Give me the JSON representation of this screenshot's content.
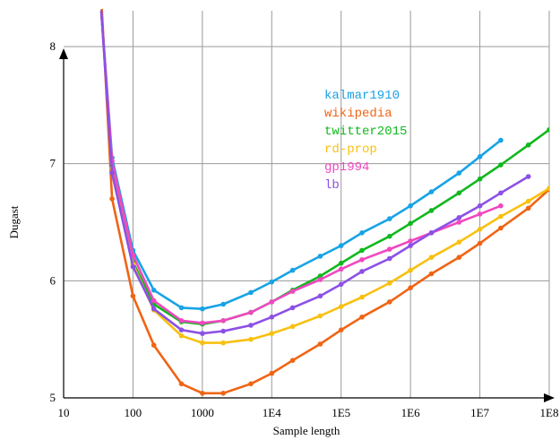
{
  "chart_data": {
    "type": "line",
    "title": "",
    "xlabel": "Sample length",
    "ylabel": "Dugast",
    "x_scale": "log",
    "xlim": [
      10,
      100000000
    ],
    "ylim": [
      5,
      8
    ],
    "grid": true,
    "legend_placement": "upper-middle-right",
    "x_ticks": [
      {
        "value": 10,
        "label": "10"
      },
      {
        "value": 100,
        "label": "100"
      },
      {
        "value": 1000,
        "label": "1000"
      },
      {
        "value": 10000,
        "label": "1E4"
      },
      {
        "value": 100000,
        "label": "1E5"
      },
      {
        "value": 1000000,
        "label": "1E6"
      },
      {
        "value": 10000000,
        "label": "1E7"
      },
      {
        "value": 100000000,
        "label": "1E8"
      }
    ],
    "y_ticks": [
      {
        "value": 5,
        "label": "5"
      },
      {
        "value": 6,
        "label": "6"
      },
      {
        "value": 7,
        "label": "7"
      },
      {
        "value": 8,
        "label": "8"
      }
    ],
    "series": [
      {
        "name": "kalmar1910",
        "color": "#17a3e6",
        "points": [
          [
            35,
            8.3
          ],
          [
            50,
            7.05
          ],
          [
            100,
            6.26
          ],
          [
            200,
            5.92
          ],
          [
            500,
            5.77
          ],
          [
            1000,
            5.76
          ],
          [
            2000,
            5.8
          ],
          [
            5000,
            5.9
          ],
          [
            10000,
            5.99
          ],
          [
            20000,
            6.09
          ],
          [
            50000,
            6.21
          ],
          [
            100000,
            6.3
          ],
          [
            200000,
            6.41
          ],
          [
            500000,
            6.53
          ],
          [
            1000000,
            6.64
          ],
          [
            2000000,
            6.76
          ],
          [
            5000000,
            6.92
          ],
          [
            10000000,
            7.06
          ],
          [
            20000000,
            7.2
          ]
        ]
      },
      {
        "name": "wikipedia",
        "color": "#f06414",
        "points": [
          [
            35,
            8.4
          ],
          [
            50,
            6.7
          ],
          [
            100,
            5.87
          ],
          [
            200,
            5.45
          ],
          [
            500,
            5.12
          ],
          [
            1000,
            5.04
          ],
          [
            2000,
            5.04
          ],
          [
            5000,
            5.12
          ],
          [
            10000,
            5.21
          ],
          [
            20000,
            5.32
          ],
          [
            50000,
            5.46
          ],
          [
            100000,
            5.58
          ],
          [
            200000,
            5.69
          ],
          [
            500000,
            5.82
          ],
          [
            1000000,
            5.94
          ],
          [
            2000000,
            6.06
          ],
          [
            5000000,
            6.2
          ],
          [
            10000000,
            6.32
          ],
          [
            20000000,
            6.45
          ],
          [
            50000000,
            6.62
          ],
          [
            100000000,
            6.78
          ]
        ]
      },
      {
        "name": "twitter2015",
        "color": "#10b81e",
        "points": [
          [
            35,
            8.3
          ],
          [
            50,
            6.98
          ],
          [
            100,
            6.16
          ],
          [
            200,
            5.8
          ],
          [
            500,
            5.65
          ],
          [
            1000,
            5.63
          ],
          [
            2000,
            5.66
          ],
          [
            5000,
            5.73
          ],
          [
            10000,
            5.82
          ],
          [
            20000,
            5.92
          ],
          [
            50000,
            6.04
          ],
          [
            100000,
            6.15
          ],
          [
            200000,
            6.26
          ],
          [
            500000,
            6.38
          ],
          [
            1000000,
            6.49
          ],
          [
            2000000,
            6.6
          ],
          [
            5000000,
            6.75
          ],
          [
            10000000,
            6.87
          ],
          [
            20000000,
            6.99
          ],
          [
            50000000,
            7.16
          ],
          [
            100000000,
            7.29
          ]
        ]
      },
      {
        "name": "rd-prop",
        "color": "#f8c010",
        "points": [
          [
            35,
            8.3
          ],
          [
            50,
            6.96
          ],
          [
            100,
            6.14
          ],
          [
            200,
            5.75
          ],
          [
            500,
            5.53
          ],
          [
            1000,
            5.47
          ],
          [
            2000,
            5.47
          ],
          [
            5000,
            5.5
          ],
          [
            10000,
            5.55
          ],
          [
            20000,
            5.61
          ],
          [
            50000,
            5.7
          ],
          [
            100000,
            5.78
          ],
          [
            200000,
            5.86
          ],
          [
            500000,
            5.98
          ],
          [
            1000000,
            6.09
          ],
          [
            2000000,
            6.2
          ],
          [
            5000000,
            6.33
          ],
          [
            10000000,
            6.44
          ],
          [
            20000000,
            6.55
          ],
          [
            50000000,
            6.68
          ],
          [
            100000000,
            6.79
          ]
        ]
      },
      {
        "name": "gp1994",
        "color": "#f048c0",
        "points": [
          [
            35,
            8.3
          ],
          [
            50,
            7.02
          ],
          [
            100,
            6.22
          ],
          [
            200,
            5.83
          ],
          [
            500,
            5.66
          ],
          [
            1000,
            5.64
          ],
          [
            2000,
            5.66
          ],
          [
            5000,
            5.73
          ],
          [
            10000,
            5.82
          ],
          [
            20000,
            5.91
          ],
          [
            50000,
            6.01
          ],
          [
            100000,
            6.1
          ],
          [
            200000,
            6.18
          ],
          [
            500000,
            6.27
          ],
          [
            1000000,
            6.34
          ],
          [
            2000000,
            6.41
          ],
          [
            5000000,
            6.5
          ],
          [
            10000000,
            6.57
          ],
          [
            20000000,
            6.64
          ]
        ]
      },
      {
        "name": "lb",
        "color": "#8c50e6",
        "points": [
          [
            35,
            8.3
          ],
          [
            50,
            6.92
          ],
          [
            100,
            6.12
          ],
          [
            200,
            5.76
          ],
          [
            500,
            5.58
          ],
          [
            1000,
            5.55
          ],
          [
            2000,
            5.57
          ],
          [
            5000,
            5.62
          ],
          [
            10000,
            5.69
          ],
          [
            20000,
            5.77
          ],
          [
            50000,
            5.87
          ],
          [
            100000,
            5.97
          ],
          [
            200000,
            6.08
          ],
          [
            500000,
            6.19
          ],
          [
            1000000,
            6.3
          ],
          [
            2000000,
            6.41
          ],
          [
            5000000,
            6.54
          ],
          [
            10000000,
            6.64
          ],
          [
            20000000,
            6.75
          ],
          [
            50000000,
            6.89
          ]
        ]
      }
    ]
  }
}
